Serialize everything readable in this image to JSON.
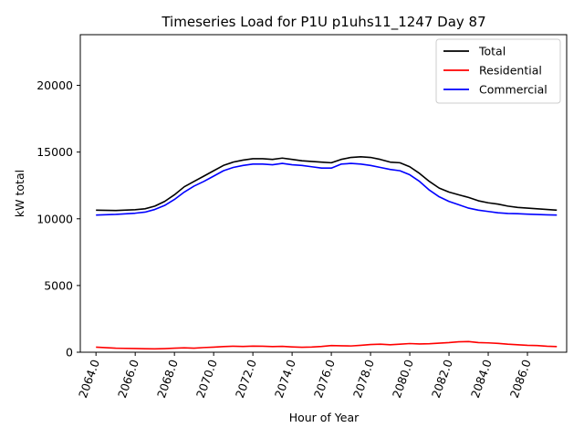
{
  "chart_data": {
    "type": "line",
    "title": "Timeseries Load for P1U p1uhs11_1247  Day 87",
    "xlabel": "Hour of Year",
    "ylabel": "kW total",
    "xlim": [
      2063.2,
      2088.0
    ],
    "ylim": [
      0,
      23800
    ],
    "xticks": [
      2064,
      2066,
      2068,
      2070,
      2072,
      2074,
      2076,
      2078,
      2080,
      2082,
      2084,
      2086
    ],
    "xtick_labels": [
      "2064.0",
      "2066.0",
      "2068.0",
      "2070.0",
      "2072.0",
      "2074.0",
      "2076.0",
      "2078.0",
      "2080.0",
      "2082.0",
      "2084.0",
      "2086.0"
    ],
    "yticks": [
      0,
      5000,
      10000,
      15000,
      20000
    ],
    "ytick_labels": [
      "0",
      "5000",
      "10000",
      "15000",
      "20000"
    ],
    "legend_position": "top-right",
    "series": [
      {
        "name": "Total",
        "color": "#000000",
        "x": [
          2064,
          2065,
          2066,
          2066.5,
          2067,
          2067.5,
          2068,
          2068.5,
          2069,
          2069.5,
          2070,
          2070.5,
          2071,
          2071.5,
          2072,
          2072.5,
          2073,
          2073.5,
          2074,
          2074.5,
          2075,
          2075.5,
          2076,
          2076.5,
          2077,
          2077.5,
          2078,
          2078.5,
          2079,
          2079.5,
          2080,
          2080.5,
          2081,
          2081.5,
          2082,
          2082.5,
          2083,
          2083.5,
          2084,
          2084.5,
          2085,
          2085.5,
          2086,
          2086.5,
          2087,
          2087.5
        ],
        "values": [
          10650,
          10620,
          10680,
          10750,
          10950,
          11300,
          11800,
          12400,
          12800,
          13200,
          13600,
          14000,
          14250,
          14400,
          14500,
          14500,
          14450,
          14550,
          14450,
          14350,
          14300,
          14250,
          14200,
          14450,
          14600,
          14650,
          14600,
          14450,
          14250,
          14200,
          13900,
          13400,
          12800,
          12300,
          12000,
          11800,
          11600,
          11350,
          11200,
          11100,
          10950,
          10850,
          10800,
          10750,
          10700,
          10650
        ]
      },
      {
        "name": "Residential",
        "color": "#ff0000",
        "x": [
          2064,
          2065,
          2066,
          2066.5,
          2067,
          2067.5,
          2068,
          2068.5,
          2069,
          2069.5,
          2070,
          2070.5,
          2071,
          2071.5,
          2072,
          2072.5,
          2073,
          2073.5,
          2074,
          2074.5,
          2075,
          2075.5,
          2076,
          2076.5,
          2077,
          2077.5,
          2078,
          2078.5,
          2079,
          2079.5,
          2080,
          2080.5,
          2081,
          2081.5,
          2082,
          2082.5,
          2083,
          2083.5,
          2084,
          2084.5,
          2085,
          2085.5,
          2086,
          2086.5,
          2087,
          2087.5
        ],
        "values": [
          380,
          300,
          280,
          260,
          250,
          270,
          300,
          330,
          300,
          350,
          380,
          420,
          450,
          430,
          460,
          450,
          420,
          440,
          400,
          370,
          390,
          430,
          500,
          480,
          470,
          520,
          580,
          600,
          560,
          600,
          650,
          620,
          640,
          680,
          720,
          780,
          800,
          720,
          700,
          660,
          600,
          560,
          520,
          500,
          450,
          420
        ]
      },
      {
        "name": "Commercial",
        "color": "#0000ff",
        "x": [
          2064,
          2065,
          2066,
          2066.5,
          2067,
          2067.5,
          2068,
          2068.5,
          2069,
          2069.5,
          2070,
          2070.5,
          2071,
          2071.5,
          2072,
          2072.5,
          2073,
          2073.5,
          2074,
          2074.5,
          2075,
          2075.5,
          2076,
          2076.5,
          2077,
          2077.5,
          2078,
          2078.5,
          2079,
          2079.5,
          2080,
          2080.5,
          2081,
          2081.5,
          2082,
          2082.5,
          2083,
          2083.5,
          2084,
          2084.5,
          2085,
          2085.5,
          2086,
          2086.5,
          2087,
          2087.5
        ],
        "values": [
          10280,
          10330,
          10420,
          10500,
          10700,
          11000,
          11450,
          12000,
          12450,
          12800,
          13200,
          13600,
          13850,
          14000,
          14100,
          14100,
          14050,
          14150,
          14050,
          14000,
          13900,
          13800,
          13800,
          14100,
          14150,
          14100,
          14000,
          13850,
          13700,
          13600,
          13300,
          12800,
          12150,
          11650,
          11300,
          11050,
          10800,
          10650,
          10550,
          10450,
          10400,
          10380,
          10350,
          10320,
          10300,
          10280
        ]
      }
    ]
  }
}
